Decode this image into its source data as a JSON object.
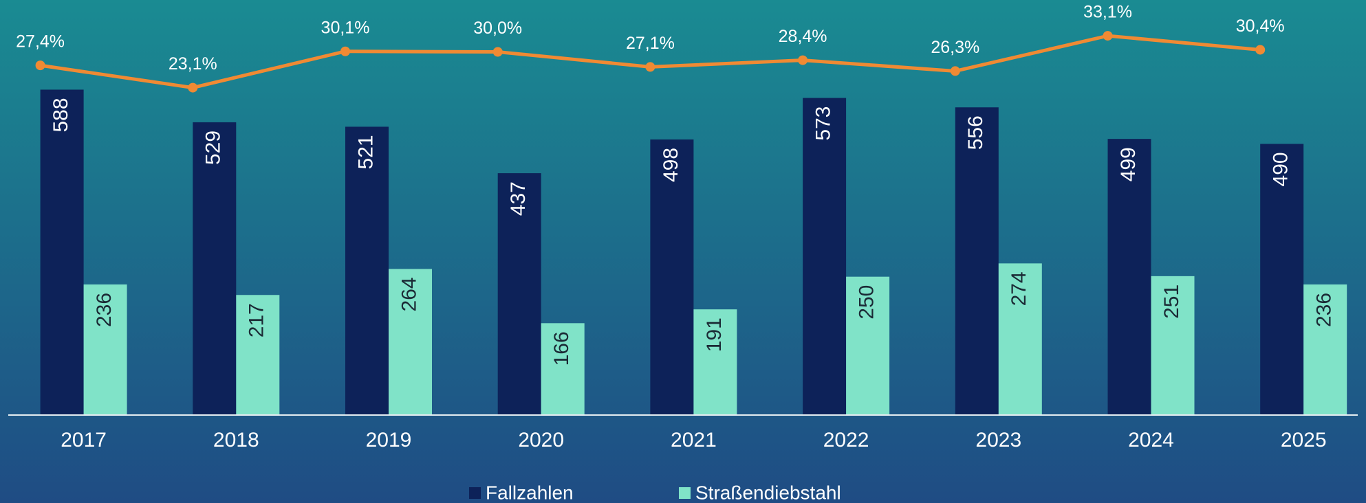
{
  "chart_data": {
    "type": "bar",
    "categories": [
      "2017",
      "2018",
      "2019",
      "2020",
      "2021",
      "2022",
      "2023",
      "2024",
      "2025"
    ],
    "ylim": [
      0,
      750
    ],
    "y2lim": [
      -40,
      40
    ],
    "series": [
      {
        "name": "Fallzahlen",
        "color": "#0d2259",
        "values": [
          588,
          529,
          521,
          437,
          498,
          573,
          556,
          499,
          490
        ]
      },
      {
        "name": "Straßendiebstahl",
        "color": "#80e3c8",
        "values": [
          236,
          217,
          264,
          166,
          191,
          250,
          274,
          251,
          236
        ]
      },
      {
        "type": "line",
        "axis": "y2",
        "color": "#f08a33",
        "values": [
          27.4,
          23.1,
          30.1,
          30.0,
          27.1,
          28.4,
          26.3,
          33.1,
          30.4
        ],
        "value_labels": [
          "27,4%",
          "23,1%",
          "30,1%",
          "30,0%",
          "27,1%",
          "28,4%",
          "26,3%",
          "33,1%",
          "30,4%"
        ]
      }
    ]
  }
}
